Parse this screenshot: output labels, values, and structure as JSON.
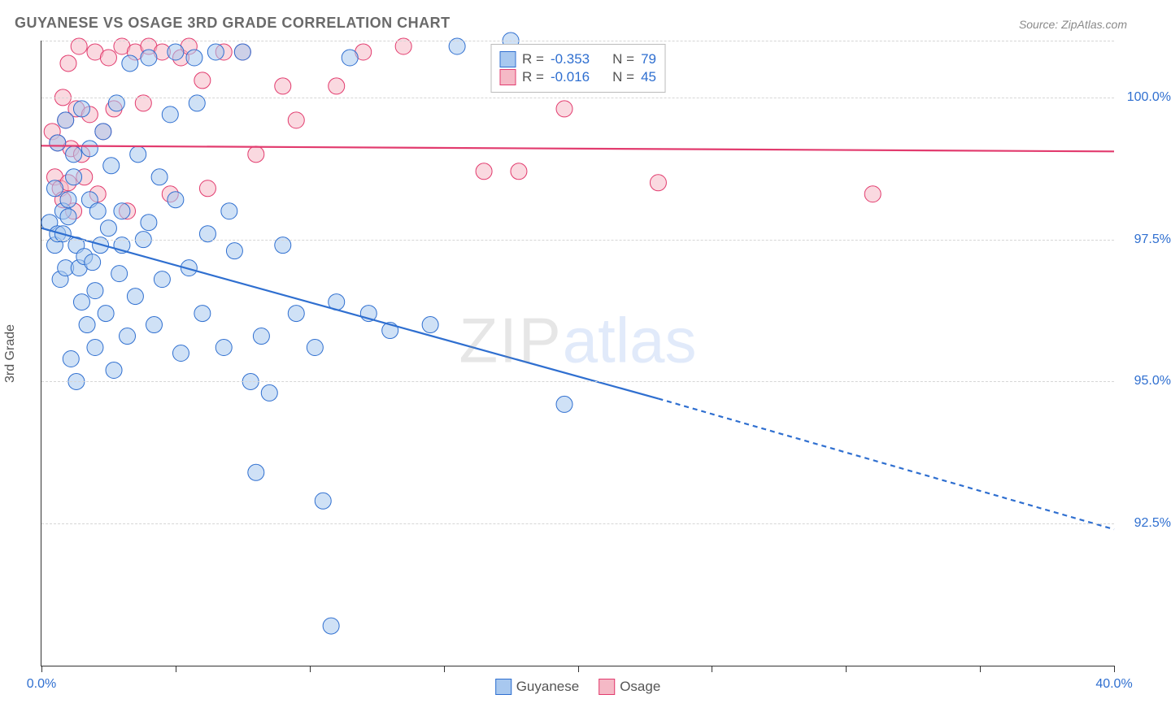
{
  "title": "GUYANESE VS OSAGE 3RD GRADE CORRELATION CHART",
  "source_label": "Source: ZipAtlas.com",
  "y_axis_label": "3rd Grade",
  "watermark": {
    "part1": "ZIP",
    "part2": "atlas"
  },
  "colors": {
    "series_a_fill": "#a8c8ef",
    "series_a_stroke": "#2f6fd0",
    "series_b_fill": "#f5b9c6",
    "series_b_stroke": "#e23b6e",
    "axis_text": "#2f6fd0",
    "grid": "#d6d6d6",
    "title_text": "#6a6a6a",
    "source_text": "#8a8a8a"
  },
  "chart": {
    "type": "scatter",
    "xlim": [
      0.0,
      40.0
    ],
    "ylim": [
      90.0,
      101.0
    ],
    "x_ticks": [
      0,
      5,
      10,
      15,
      20,
      25,
      30,
      35,
      40
    ],
    "x_tick_labels": {
      "0": "0.0%",
      "40": "40.0%"
    },
    "y_grid": [
      92.5,
      95.0,
      97.5,
      100.0,
      101.0
    ],
    "y_tick_labels": {
      "92.5": "92.5%",
      "95.0": "95.0%",
      "97.5": "97.5%",
      "100.0": "100.0%"
    },
    "marker_radius": 10,
    "marker_opacity": 0.55,
    "line_width": 2.2,
    "background": "#ffffff"
  },
  "legend_top": {
    "rows": [
      {
        "swatch_fill": "#a8c8ef",
        "swatch_stroke": "#2f6fd0",
        "r_label": "R = ",
        "r_value": "-0.353",
        "n_label": "N = ",
        "n_value": "79"
      },
      {
        "swatch_fill": "#f5b9c6",
        "swatch_stroke": "#e23b6e",
        "r_label": "R = ",
        "r_value": "-0.016",
        "n_label": "N = ",
        "n_value": "45"
      }
    ]
  },
  "legend_bottom": {
    "items": [
      {
        "swatch_fill": "#a8c8ef",
        "swatch_stroke": "#2f6fd0",
        "label": "Guyanese"
      },
      {
        "swatch_fill": "#f5b9c6",
        "swatch_stroke": "#e23b6e",
        "label": "Osage"
      }
    ]
  },
  "series_a": {
    "name": "Guyanese",
    "regression": {
      "x1": 0.0,
      "y1": 97.7,
      "x2": 23.0,
      "y2": 94.7,
      "extend_x2": 40.0,
      "extend_y2": 92.4
    },
    "points": [
      [
        0.3,
        97.8
      ],
      [
        0.5,
        98.4
      ],
      [
        0.5,
        97.4
      ],
      [
        0.6,
        99.2
      ],
      [
        0.6,
        97.6
      ],
      [
        0.7,
        96.8
      ],
      [
        0.8,
        98.0
      ],
      [
        0.8,
        97.6
      ],
      [
        0.9,
        99.6
      ],
      [
        0.9,
        97.0
      ],
      [
        1.0,
        98.2
      ],
      [
        1.0,
        97.9
      ],
      [
        1.1,
        95.4
      ],
      [
        1.2,
        99.0
      ],
      [
        1.2,
        98.6
      ],
      [
        1.3,
        97.4
      ],
      [
        1.3,
        95.0
      ],
      [
        1.4,
        97.0
      ],
      [
        1.5,
        99.8
      ],
      [
        1.5,
        96.4
      ],
      [
        1.6,
        97.2
      ],
      [
        1.7,
        96.0
      ],
      [
        1.8,
        98.2
      ],
      [
        1.8,
        99.1
      ],
      [
        1.9,
        97.1
      ],
      [
        2.0,
        96.6
      ],
      [
        2.0,
        95.6
      ],
      [
        2.1,
        98.0
      ],
      [
        2.2,
        97.4
      ],
      [
        2.3,
        99.4
      ],
      [
        2.4,
        96.2
      ],
      [
        2.5,
        97.7
      ],
      [
        2.6,
        98.8
      ],
      [
        2.7,
        95.2
      ],
      [
        2.8,
        99.9
      ],
      [
        2.9,
        96.9
      ],
      [
        3.0,
        98.0
      ],
      [
        3.0,
        97.4
      ],
      [
        3.2,
        95.8
      ],
      [
        3.3,
        100.6
      ],
      [
        3.5,
        96.5
      ],
      [
        3.6,
        99.0
      ],
      [
        3.8,
        97.5
      ],
      [
        4.0,
        100.7
      ],
      [
        4.0,
        97.8
      ],
      [
        4.2,
        96.0
      ],
      [
        4.4,
        98.6
      ],
      [
        4.5,
        96.8
      ],
      [
        4.8,
        99.7
      ],
      [
        5.0,
        100.8
      ],
      [
        5.0,
        98.2
      ],
      [
        5.2,
        95.5
      ],
      [
        5.5,
        97.0
      ],
      [
        5.7,
        100.7
      ],
      [
        5.8,
        99.9
      ],
      [
        6.0,
        96.2
      ],
      [
        6.2,
        97.6
      ],
      [
        6.5,
        100.8
      ],
      [
        6.8,
        95.6
      ],
      [
        7.0,
        98.0
      ],
      [
        7.2,
        97.3
      ],
      [
        7.5,
        100.8
      ],
      [
        7.8,
        95.0
      ],
      [
        8.0,
        93.4
      ],
      [
        8.2,
        95.8
      ],
      [
        8.5,
        94.8
      ],
      [
        9.0,
        97.4
      ],
      [
        9.5,
        96.2
      ],
      [
        10.2,
        95.6
      ],
      [
        10.5,
        92.9
      ],
      [
        11.0,
        96.4
      ],
      [
        11.5,
        100.7
      ],
      [
        12.2,
        96.2
      ],
      [
        13.0,
        95.9
      ],
      [
        14.5,
        96.0
      ],
      [
        15.5,
        100.9
      ],
      [
        17.5,
        101.0
      ],
      [
        19.5,
        94.6
      ],
      [
        10.8,
        90.7
      ]
    ]
  },
  "series_b": {
    "name": "Osage",
    "regression": {
      "x1": 0.0,
      "y1": 99.15,
      "x2": 40.0,
      "y2": 99.05
    },
    "points": [
      [
        0.4,
        99.4
      ],
      [
        0.5,
        98.6
      ],
      [
        0.6,
        99.2
      ],
      [
        0.7,
        98.4
      ],
      [
        0.8,
        100.0
      ],
      [
        0.8,
        98.2
      ],
      [
        0.9,
        99.6
      ],
      [
        1.0,
        100.6
      ],
      [
        1.0,
        98.5
      ],
      [
        1.1,
        99.1
      ],
      [
        1.2,
        98.0
      ],
      [
        1.3,
        99.8
      ],
      [
        1.4,
        100.9
      ],
      [
        1.5,
        99.0
      ],
      [
        1.6,
        98.6
      ],
      [
        1.8,
        99.7
      ],
      [
        2.0,
        100.8
      ],
      [
        2.1,
        98.3
      ],
      [
        2.3,
        99.4
      ],
      [
        2.5,
        100.7
      ],
      [
        2.7,
        99.8
      ],
      [
        3.0,
        100.9
      ],
      [
        3.2,
        98.0
      ],
      [
        3.5,
        100.8
      ],
      [
        3.8,
        99.9
      ],
      [
        4.0,
        100.9
      ],
      [
        4.5,
        100.8
      ],
      [
        4.8,
        98.3
      ],
      [
        5.2,
        100.7
      ],
      [
        5.5,
        100.9
      ],
      [
        6.0,
        100.3
      ],
      [
        6.2,
        98.4
      ],
      [
        6.8,
        100.8
      ],
      [
        7.5,
        100.8
      ],
      [
        8.0,
        99.0
      ],
      [
        9.0,
        100.2
      ],
      [
        9.5,
        99.6
      ],
      [
        11.0,
        100.2
      ],
      [
        12.0,
        100.8
      ],
      [
        13.5,
        100.9
      ],
      [
        16.5,
        98.7
      ],
      [
        17.8,
        98.7
      ],
      [
        19.5,
        99.8
      ],
      [
        23.0,
        98.5
      ],
      [
        31.0,
        98.3
      ]
    ]
  }
}
